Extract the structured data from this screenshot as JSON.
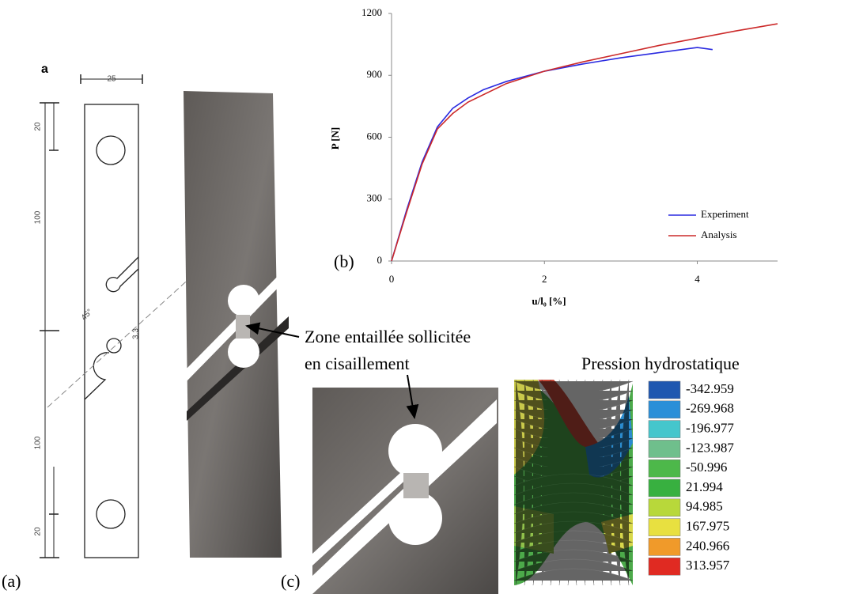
{
  "chart_data": {
    "type": "line",
    "panel_label": "(b)",
    "x_label": "u/l₀ [%]",
    "y_label": "P [N]",
    "xlim": [
      0,
      5.05
    ],
    "ylim": [
      0,
      1200
    ],
    "xticks": [
      0,
      2,
      4
    ],
    "yticks": [
      0,
      300,
      600,
      900,
      1200
    ],
    "legend": "lower right",
    "series": [
      {
        "name": "Experiment",
        "color": "#2a2ae0",
        "x": [
          0,
          0.2,
          0.4,
          0.6,
          0.8,
          1.0,
          1.2,
          1.5,
          2.0,
          2.5,
          3.0,
          3.5,
          3.9,
          4.0,
          4.2
        ],
        "values": [
          0,
          250,
          480,
          650,
          740,
          790,
          830,
          870,
          920,
          955,
          985,
          1010,
          1030,
          1035,
          1025
        ]
      },
      {
        "name": "Analysis",
        "color": "#cc2a2a",
        "x": [
          0,
          0.2,
          0.4,
          0.6,
          0.8,
          1.0,
          1.5,
          2.0,
          2.5,
          3.0,
          3.5,
          4.0,
          4.5,
          5.05
        ],
        "values": [
          0,
          240,
          470,
          640,
          715,
          770,
          860,
          920,
          965,
          1005,
          1045,
          1080,
          1115,
          1150
        ]
      }
    ]
  },
  "panel_a": {
    "label": "(a)",
    "letter": "a",
    "dims": [
      "25",
      "20",
      "100",
      "45°",
      "3,3",
      "100",
      "20"
    ]
  },
  "panel_c": {
    "label": "(c)"
  },
  "annotation": {
    "lines": [
      "Zone entaillée sollicitée",
      "en cisaillement"
    ]
  },
  "contour": {
    "title": "Pression hydrostatique",
    "values": [
      -342.959,
      -269.968,
      -196.977,
      -123.987,
      -50.996,
      21.994,
      94.985,
      167.975,
      240.966,
      313.957
    ]
  }
}
